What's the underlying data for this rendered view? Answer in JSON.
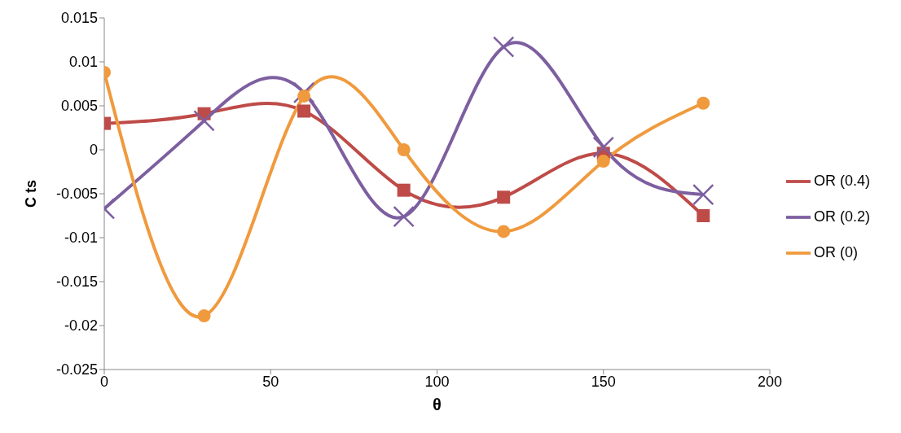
{
  "chart_data": {
    "type": "line",
    "xlabel": "θ",
    "ylabel": "C ts",
    "x": [
      0,
      30,
      60,
      90,
      120,
      150,
      180
    ],
    "series": [
      {
        "name": "OR (0.4)",
        "color": "#be4b48",
        "marker": "square",
        "values": [
          0.003,
          0.0041,
          0.0044,
          -0.0046,
          -0.0054,
          -0.0004,
          -0.0075
        ]
      },
      {
        "name": "OR (0.2)",
        "color": "#7d5fa0",
        "marker": "cross",
        "values": [
          -0.0067,
          0.0033,
          0.0065,
          -0.0076,
          0.0117,
          0.0003,
          -0.0051
        ]
      },
      {
        "name": "OR (0)",
        "color": "#f09a3e",
        "marker": "circle",
        "values": [
          0.0088,
          -0.0189,
          0.0061,
          0,
          -0.0093,
          -0.0013,
          0.0053
        ]
      }
    ],
    "xlim": [
      0,
      200
    ],
    "xticks": [
      0,
      50,
      100,
      150,
      200
    ],
    "ylim": [
      -0.025,
      0.015
    ],
    "yticks": [
      -0.025,
      -0.02,
      -0.015,
      -0.01,
      -0.005,
      0,
      0.005,
      0.01,
      0.015
    ],
    "grid": false,
    "legend": "right"
  }
}
